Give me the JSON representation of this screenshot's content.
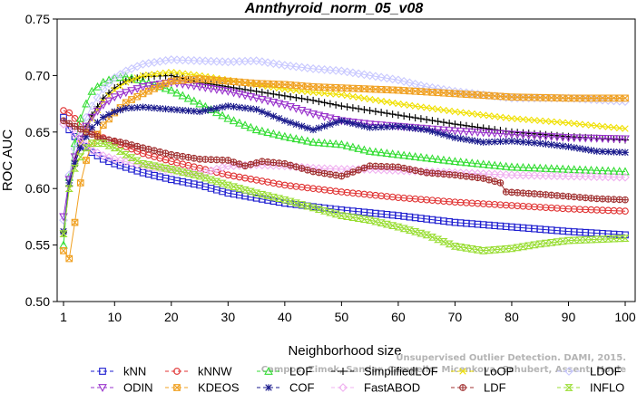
{
  "chart_data": {
    "type": "line",
    "title": "Annthyroid_norm_05_v08",
    "xlabel": "Neighborhood size",
    "ylabel": "ROC AUC",
    "xlim": [
      1,
      100
    ],
    "ylim": [
      0.5,
      0.75
    ],
    "xticks": [
      1,
      10,
      20,
      30,
      40,
      50,
      60,
      70,
      80,
      90,
      100
    ],
    "yticks": [
      "0.50",
      "0.55",
      "0.60",
      "0.65",
      "0.70",
      "0.75"
    ],
    "grid": false,
    "legend_position": "bottom",
    "watermark": [
      "Campos, Zimek, Sander, Campello, Micenkova, Schubert, Assent, Houle",
      "Unsupervised Outlier Detection. DAMI, 2015."
    ],
    "series": [
      {
        "name": "kNN",
        "color": "#1f1fd0",
        "marker": "square",
        "points": [
          [
            1,
            0.663
          ],
          [
            2,
            0.652
          ],
          [
            3,
            0.646
          ],
          [
            4,
            0.641
          ],
          [
            5,
            0.637
          ],
          [
            6,
            0.632
          ],
          [
            8,
            0.626
          ],
          [
            10,
            0.622
          ],
          [
            15,
            0.614
          ],
          [
            20,
            0.608
          ],
          [
            25,
            0.603
          ],
          [
            30,
            0.596
          ],
          [
            40,
            0.587
          ],
          [
            50,
            0.581
          ],
          [
            60,
            0.576
          ],
          [
            70,
            0.57
          ],
          [
            80,
            0.566
          ],
          [
            90,
            0.562
          ],
          [
            100,
            0.559
          ]
        ]
      },
      {
        "name": "kNNW",
        "color": "#e03030",
        "marker": "circle",
        "points": [
          [
            1,
            0.669
          ],
          [
            2,
            0.667
          ],
          [
            3,
            0.662
          ],
          [
            4,
            0.657
          ],
          [
            5,
            0.653
          ],
          [
            6,
            0.65
          ],
          [
            8,
            0.645
          ],
          [
            10,
            0.641
          ],
          [
            15,
            0.631
          ],
          [
            20,
            0.624
          ],
          [
            25,
            0.618
          ],
          [
            30,
            0.612
          ],
          [
            40,
            0.603
          ],
          [
            50,
            0.597
          ],
          [
            60,
            0.592
          ],
          [
            70,
            0.588
          ],
          [
            80,
            0.585
          ],
          [
            90,
            0.582
          ],
          [
            100,
            0.58
          ]
        ]
      },
      {
        "name": "LOF",
        "color": "#33dd33",
        "marker": "triangle",
        "points": [
          [
            1,
            0.55
          ],
          [
            2,
            0.61
          ],
          [
            3,
            0.64
          ],
          [
            4,
            0.662
          ],
          [
            5,
            0.675
          ],
          [
            6,
            0.686
          ],
          [
            8,
            0.694
          ],
          [
            10,
            0.698
          ],
          [
            12,
            0.699
          ],
          [
            15,
            0.695
          ],
          [
            20,
            0.687
          ],
          [
            25,
            0.675
          ],
          [
            30,
            0.662
          ],
          [
            35,
            0.652
          ],
          [
            40,
            0.646
          ],
          [
            45,
            0.641
          ],
          [
            50,
            0.639
          ],
          [
            55,
            0.633
          ],
          [
            60,
            0.63
          ],
          [
            70,
            0.624
          ],
          [
            80,
            0.619
          ],
          [
            90,
            0.617
          ],
          [
            100,
            0.615
          ]
        ]
      },
      {
        "name": "SimplifiedLOF",
        "color": "#000000",
        "marker": "plus",
        "points": [
          [
            1,
            0.561
          ],
          [
            2,
            0.602
          ],
          [
            3,
            0.625
          ],
          [
            4,
            0.643
          ],
          [
            5,
            0.655
          ],
          [
            6,
            0.665
          ],
          [
            8,
            0.68
          ],
          [
            10,
            0.689
          ],
          [
            12,
            0.695
          ],
          [
            15,
            0.699
          ],
          [
            20,
            0.7
          ],
          [
            25,
            0.694
          ],
          [
            30,
            0.69
          ],
          [
            35,
            0.686
          ],
          [
            40,
            0.682
          ],
          [
            45,
            0.678
          ],
          [
            50,
            0.673
          ],
          [
            55,
            0.669
          ],
          [
            60,
            0.665
          ],
          [
            70,
            0.657
          ],
          [
            80,
            0.65
          ],
          [
            90,
            0.646
          ],
          [
            100,
            0.643
          ]
        ]
      },
      {
        "name": "LoOP",
        "color": "#f0e000",
        "marker": "cross",
        "points": [
          [
            1,
            0.56
          ],
          [
            2,
            0.6
          ],
          [
            3,
            0.622
          ],
          [
            4,
            0.64
          ],
          [
            5,
            0.653
          ],
          [
            6,
            0.662
          ],
          [
            8,
            0.677
          ],
          [
            10,
            0.687
          ],
          [
            12,
            0.694
          ],
          [
            15,
            0.7
          ],
          [
            20,
            0.703
          ],
          [
            25,
            0.7
          ],
          [
            30,
            0.696
          ],
          [
            35,
            0.692
          ],
          [
            40,
            0.688
          ],
          [
            45,
            0.685
          ],
          [
            50,
            0.683
          ],
          [
            55,
            0.679
          ],
          [
            60,
            0.675
          ],
          [
            70,
            0.668
          ],
          [
            80,
            0.662
          ],
          [
            90,
            0.658
          ],
          [
            100,
            0.653
          ]
        ]
      },
      {
        "name": "LDOF",
        "color": "#c8c8ff",
        "marker": "diamond",
        "points": [
          [
            1,
            0.572
          ],
          [
            2,
            0.612
          ],
          [
            3,
            0.635
          ],
          [
            4,
            0.652
          ],
          [
            5,
            0.663
          ],
          [
            6,
            0.673
          ],
          [
            8,
            0.688
          ],
          [
            10,
            0.698
          ],
          [
            12,
            0.704
          ],
          [
            15,
            0.71
          ],
          [
            20,
            0.714
          ],
          [
            25,
            0.713
          ],
          [
            30,
            0.712
          ],
          [
            35,
            0.713
          ],
          [
            40,
            0.709
          ],
          [
            45,
            0.706
          ],
          [
            50,
            0.704
          ],
          [
            55,
            0.7
          ],
          [
            60,
            0.696
          ],
          [
            65,
            0.69
          ],
          [
            70,
            0.686
          ],
          [
            75,
            0.683
          ],
          [
            80,
            0.68
          ],
          [
            90,
            0.68
          ],
          [
            100,
            0.677
          ]
        ]
      },
      {
        "name": "ODIN",
        "color": "#9933cc",
        "marker": "triangle-down",
        "points": [
          [
            1,
            0.575
          ],
          [
            2,
            0.608
          ],
          [
            3,
            0.628
          ],
          [
            4,
            0.644
          ],
          [
            5,
            0.655
          ],
          [
            6,
            0.663
          ],
          [
            8,
            0.674
          ],
          [
            10,
            0.681
          ],
          [
            12,
            0.685
          ],
          [
            15,
            0.69
          ],
          [
            20,
            0.694
          ],
          [
            25,
            0.69
          ],
          [
            30,
            0.686
          ],
          [
            35,
            0.68
          ],
          [
            40,
            0.674
          ],
          [
            45,
            0.666
          ],
          [
            50,
            0.66
          ],
          [
            55,
            0.657
          ],
          [
            60,
            0.655
          ],
          [
            70,
            0.651
          ],
          [
            80,
            0.648
          ],
          [
            90,
            0.645
          ],
          [
            100,
            0.644
          ]
        ]
      },
      {
        "name": "KDEOS",
        "color": "#f0a020",
        "marker": "square-x",
        "points": [
          [
            1,
            0.545
          ],
          [
            2,
            0.538
          ],
          [
            3,
            0.57
          ],
          [
            4,
            0.605
          ],
          [
            5,
            0.625
          ],
          [
            6,
            0.64
          ],
          [
            8,
            0.656
          ],
          [
            10,
            0.667
          ],
          [
            12,
            0.676
          ],
          [
            15,
            0.684
          ],
          [
            20,
            0.695
          ],
          [
            25,
            0.697
          ],
          [
            30,
            0.695
          ],
          [
            35,
            0.693
          ],
          [
            40,
            0.692
          ],
          [
            45,
            0.69
          ],
          [
            50,
            0.689
          ],
          [
            55,
            0.688
          ],
          [
            60,
            0.687
          ],
          [
            70,
            0.684
          ],
          [
            80,
            0.681
          ],
          [
            90,
            0.68
          ],
          [
            100,
            0.68
          ]
        ]
      },
      {
        "name": "COF",
        "color": "#1a1a8c",
        "marker": "asterisk",
        "points": [
          [
            1,
            0.562
          ],
          [
            2,
            0.605
          ],
          [
            3,
            0.622
          ],
          [
            4,
            0.636
          ],
          [
            5,
            0.646
          ],
          [
            6,
            0.654
          ],
          [
            8,
            0.663
          ],
          [
            10,
            0.668
          ],
          [
            12,
            0.671
          ],
          [
            15,
            0.672
          ],
          [
            20,
            0.67
          ],
          [
            25,
            0.668
          ],
          [
            30,
            0.673
          ],
          [
            35,
            0.67
          ],
          [
            40,
            0.66
          ],
          [
            45,
            0.652
          ],
          [
            50,
            0.66
          ],
          [
            55,
            0.654
          ],
          [
            60,
            0.655
          ],
          [
            65,
            0.652
          ],
          [
            70,
            0.645
          ],
          [
            75,
            0.641
          ],
          [
            80,
            0.642
          ],
          [
            85,
            0.64
          ],
          [
            90,
            0.637
          ],
          [
            95,
            0.633
          ],
          [
            100,
            0.632
          ]
        ]
      },
      {
        "name": "FastABOD",
        "color": "#f0b0f0",
        "marker": "diamond",
        "points": [
          [
            1,
            0.657
          ],
          [
            2,
            0.655
          ],
          [
            3,
            0.648
          ],
          [
            4,
            0.642
          ],
          [
            5,
            0.638
          ],
          [
            6,
            0.634
          ],
          [
            8,
            0.629
          ],
          [
            10,
            0.626
          ],
          [
            15,
            0.62
          ],
          [
            20,
            0.616
          ],
          [
            25,
            0.613
          ],
          [
            30,
            0.62
          ],
          [
            35,
            0.621
          ],
          [
            40,
            0.62
          ],
          [
            45,
            0.618
          ],
          [
            50,
            0.617
          ],
          [
            55,
            0.617
          ],
          [
            60,
            0.616
          ],
          [
            70,
            0.614
          ],
          [
            80,
            0.612
          ],
          [
            90,
            0.611
          ],
          [
            100,
            0.61
          ]
        ]
      },
      {
        "name": "LDF",
        "color": "#a03030",
        "marker": "circle-plus",
        "points": [
          [
            1,
            0.66
          ],
          [
            3,
            0.655
          ],
          [
            5,
            0.65
          ],
          [
            8,
            0.644
          ],
          [
            10,
            0.642
          ],
          [
            12,
            0.64
          ],
          [
            15,
            0.636
          ],
          [
            20,
            0.63
          ],
          [
            25,
            0.626
          ],
          [
            30,
            0.625
          ],
          [
            33,
            0.62
          ],
          [
            36,
            0.624
          ],
          [
            40,
            0.622
          ],
          [
            45,
            0.615
          ],
          [
            50,
            0.611
          ],
          [
            55,
            0.62
          ],
          [
            60,
            0.619
          ],
          [
            65,
            0.614
          ],
          [
            70,
            0.612
          ],
          [
            75,
            0.609
          ],
          [
            78,
            0.605
          ],
          [
            79,
            0.597
          ],
          [
            85,
            0.595
          ],
          [
            90,
            0.593
          ],
          [
            95,
            0.591
          ],
          [
            100,
            0.59
          ]
        ]
      },
      {
        "name": "INFLO",
        "color": "#99dd33",
        "marker": "hourglass",
        "points": [
          [
            1,
            0.56
          ],
          [
            2,
            0.6
          ],
          [
            3,
            0.618
          ],
          [
            4,
            0.628
          ],
          [
            5,
            0.636
          ],
          [
            6,
            0.64
          ],
          [
            8,
            0.64
          ],
          [
            10,
            0.636
          ],
          [
            12,
            0.63
          ],
          [
            15,
            0.622
          ],
          [
            20,
            0.617
          ],
          [
            25,
            0.611
          ],
          [
            30,
            0.603
          ],
          [
            35,
            0.596
          ],
          [
            40,
            0.59
          ],
          [
            45,
            0.583
          ],
          [
            50,
            0.576
          ],
          [
            55,
            0.572
          ],
          [
            60,
            0.566
          ],
          [
            65,
            0.559
          ],
          [
            70,
            0.549
          ],
          [
            75,
            0.545
          ],
          [
            80,
            0.547
          ],
          [
            85,
            0.551
          ],
          [
            90,
            0.554
          ],
          [
            95,
            0.555
          ],
          [
            100,
            0.556
          ]
        ]
      }
    ]
  }
}
